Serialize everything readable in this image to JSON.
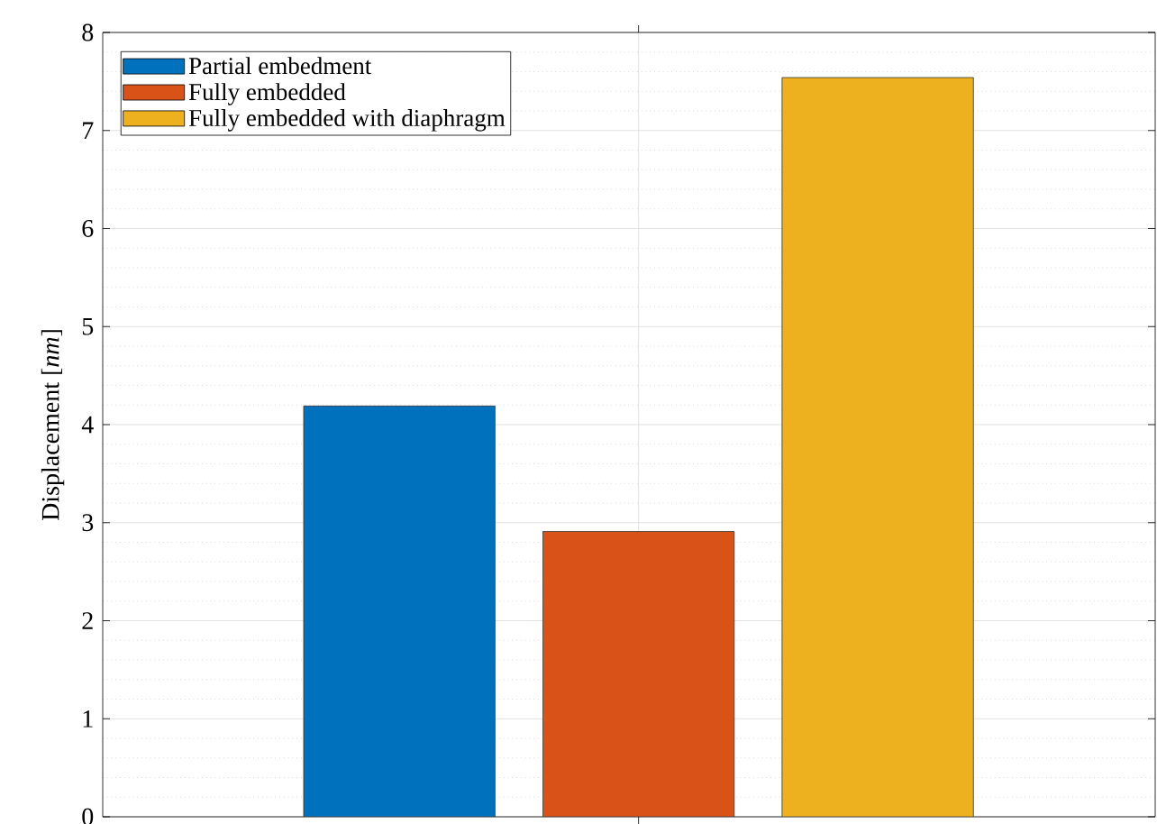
{
  "chart_data": {
    "type": "bar",
    "ylabel": "Displacement [*nm*]",
    "categories": [
      null
    ],
    "series": [
      {
        "name": "Partial embedment",
        "color": "#0072bd",
        "values": [
          4.19
        ]
      },
      {
        "name": "Fully embedded",
        "color": "#d95319",
        "values": [
          2.91
        ]
      },
      {
        "name": "Fully embedded with diaphragm",
        "color": "#edb120",
        "values": [
          7.54
        ]
      }
    ],
    "ylim": [
      0,
      8
    ],
    "yticks": [
      0,
      1,
      2,
      3,
      4,
      5,
      6,
      7,
      8
    ],
    "grid": true,
    "legend": "top left",
    "tick_labels": "y"
  }
}
